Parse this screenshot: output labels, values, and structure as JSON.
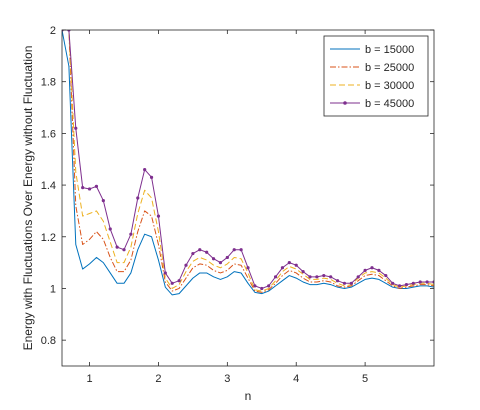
{
  "chart_data": {
    "type": "line",
    "title": "",
    "xlabel": "n",
    "ylabel": "Energy with Fluctuations Over Energy without Fluctuation",
    "xlim": [
      0.6,
      6.0
    ],
    "ylim": [
      0.7,
      2.0
    ],
    "xticks": [
      1,
      2,
      3,
      4,
      5
    ],
    "yticks": [
      0.8,
      1.0,
      1.2,
      1.4,
      1.6,
      1.8,
      2.0
    ],
    "ytick_labels": [
      "0.8",
      "1",
      "1.2",
      "1.4",
      "1.6",
      "1.8",
      "2"
    ],
    "grid": false,
    "legend_position": "top-right",
    "x": [
      0.6,
      0.7,
      0.8,
      0.9,
      1.0,
      1.1,
      1.2,
      1.3,
      1.4,
      1.5,
      1.6,
      1.7,
      1.8,
      1.9,
      2.0,
      2.1,
      2.2,
      2.3,
      2.4,
      2.5,
      2.6,
      2.7,
      2.8,
      2.9,
      3.0,
      3.1,
      3.2,
      3.3,
      3.4,
      3.5,
      3.6,
      3.7,
      3.8,
      3.9,
      4.0,
      4.1,
      4.2,
      4.3,
      4.4,
      4.5,
      4.6,
      4.7,
      4.8,
      4.9,
      5.0,
      5.1,
      5.2,
      5.3,
      5.4,
      5.5,
      5.6,
      5.7,
      5.8,
      5.9,
      6.0
    ],
    "series": [
      {
        "name": "b = 15000",
        "color": "#0072BD",
        "style": "solid",
        "marker": "none",
        "values": [
          2.0,
          1.86,
          1.17,
          1.075,
          1.095,
          1.12,
          1.1,
          1.06,
          1.02,
          1.02,
          1.06,
          1.15,
          1.21,
          1.2,
          1.11,
          1.005,
          0.975,
          0.98,
          1.01,
          1.04,
          1.06,
          1.06,
          1.045,
          1.035,
          1.045,
          1.065,
          1.06,
          1.02,
          0.985,
          0.98,
          0.99,
          1.01,
          1.03,
          1.05,
          1.04,
          1.025,
          1.015,
          1.015,
          1.02,
          1.015,
          1.005,
          1.0,
          1.005,
          1.02,
          1.035,
          1.04,
          1.035,
          1.02,
          1.005,
          1.0,
          1.0,
          1.005,
          1.01,
          1.01,
          1.005
        ]
      },
      {
        "name": "b = 25000",
        "color": "#D95319",
        "style": "dashdot",
        "marker": "none",
        "values": [
          2.0,
          2.0,
          1.32,
          1.17,
          1.19,
          1.22,
          1.19,
          1.12,
          1.065,
          1.065,
          1.11,
          1.22,
          1.3,
          1.28,
          1.17,
          1.025,
          0.99,
          1.0,
          1.04,
          1.08,
          1.095,
          1.09,
          1.07,
          1.06,
          1.07,
          1.095,
          1.09,
          1.04,
          0.99,
          0.985,
          0.995,
          1.02,
          1.05,
          1.07,
          1.06,
          1.04,
          1.025,
          1.025,
          1.03,
          1.025,
          1.01,
          1.005,
          1.01,
          1.03,
          1.05,
          1.055,
          1.05,
          1.03,
          1.01,
          1.0,
          1.005,
          1.01,
          1.015,
          1.015,
          1.01
        ]
      },
      {
        "name": "b = 30000",
        "color": "#EDB120",
        "style": "dashed",
        "marker": "none",
        "values": [
          2.0,
          2.0,
          1.45,
          1.28,
          1.29,
          1.3,
          1.26,
          1.18,
          1.1,
          1.1,
          1.16,
          1.29,
          1.38,
          1.35,
          1.22,
          1.04,
          1.0,
          1.015,
          1.065,
          1.105,
          1.12,
          1.11,
          1.09,
          1.08,
          1.095,
          1.12,
          1.115,
          1.06,
          0.995,
          0.99,
          1.0,
          1.03,
          1.065,
          1.085,
          1.075,
          1.055,
          1.035,
          1.035,
          1.04,
          1.035,
          1.02,
          1.01,
          1.015,
          1.04,
          1.06,
          1.065,
          1.06,
          1.04,
          1.015,
          1.005,
          1.01,
          1.015,
          1.02,
          1.02,
          1.015
        ]
      },
      {
        "name": "b = 45000",
        "color": "#7E2F8E",
        "style": "solid",
        "marker": "dot",
        "values": [
          2.0,
          2.0,
          1.62,
          1.39,
          1.385,
          1.395,
          1.34,
          1.23,
          1.16,
          1.15,
          1.21,
          1.35,
          1.46,
          1.43,
          1.28,
          1.06,
          1.02,
          1.03,
          1.09,
          1.135,
          1.15,
          1.14,
          1.115,
          1.1,
          1.12,
          1.15,
          1.15,
          1.08,
          1.01,
          1.0,
          1.01,
          1.045,
          1.08,
          1.1,
          1.09,
          1.065,
          1.045,
          1.045,
          1.05,
          1.045,
          1.03,
          1.02,
          1.02,
          1.045,
          1.07,
          1.08,
          1.07,
          1.05,
          1.02,
          1.01,
          1.015,
          1.02,
          1.025,
          1.025,
          1.025
        ]
      }
    ]
  }
}
